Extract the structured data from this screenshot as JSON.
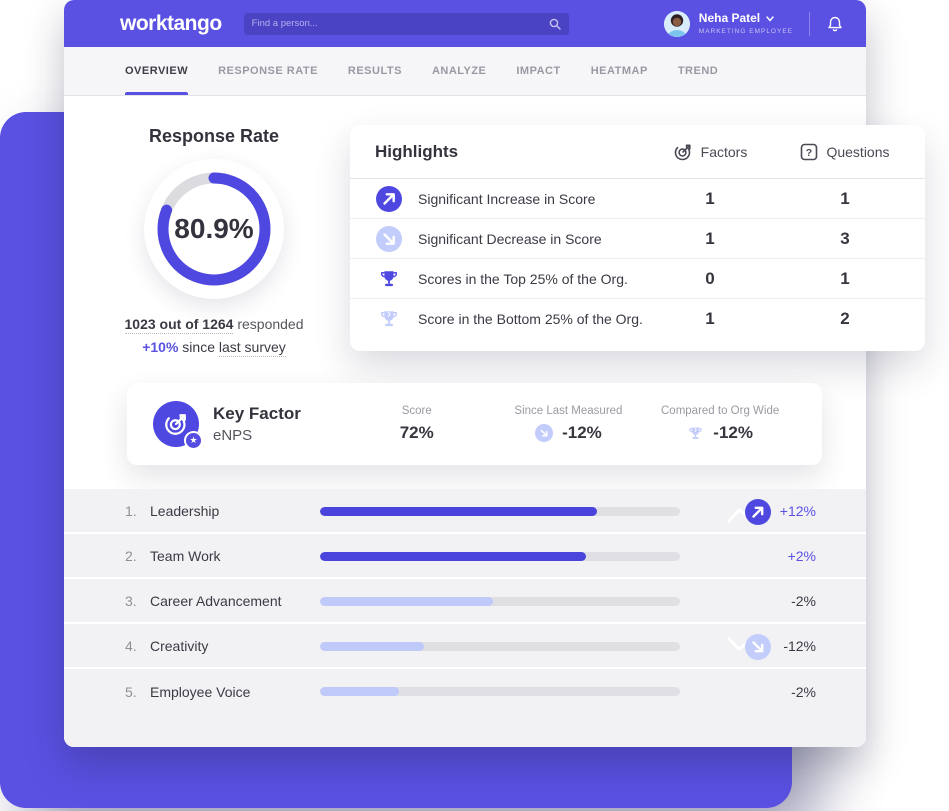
{
  "colors": {
    "accent": "#5A51E3",
    "icon_solid": "#4F48E0",
    "icon_light": "#C3CDFB",
    "bar_light": "#BFCAFA"
  },
  "header": {
    "logo": "worktango",
    "search_placeholder": "Find a person...",
    "user_name": "Neha Patel",
    "user_role": "MARKETING EMPLOYEE"
  },
  "tabs": [
    {
      "label": "OVERVIEW"
    },
    {
      "label": "RESPONSE RATE"
    },
    {
      "label": "RESULTS"
    },
    {
      "label": "ANALYZE"
    },
    {
      "label": "IMPACT"
    },
    {
      "label": "HEATMAP"
    },
    {
      "label": "TREND"
    }
  ],
  "response_rate": {
    "title": "Response Rate",
    "percent_label": "80.9%",
    "percent_value": 80.9,
    "responded_strong": "1023 out of 1264",
    "responded_text": "responded",
    "delta": "+10%",
    "delta_mid": "since",
    "delta_underlined": "last survey"
  },
  "highlights": {
    "title": "Highlights",
    "columns": {
      "factors": "Factors",
      "questions": "Questions"
    },
    "rows": [
      {
        "label": "Significant Increase in Score",
        "factors": "1",
        "questions": "1"
      },
      {
        "label": "Significant Decrease in Score",
        "factors": "1",
        "questions": "3"
      },
      {
        "label": "Scores in the Top 25% of the Org.",
        "factors": "0",
        "questions": "1"
      },
      {
        "label": "Score in the Bottom 25% of the Org.",
        "factors": "1",
        "questions": "2"
      }
    ]
  },
  "key_factor": {
    "title": "Key Factor",
    "subtitle": "eNPS",
    "score_label": "Score",
    "score_value": "72%",
    "since_label": "Since Last Measured",
    "since_value": "-12%",
    "compared_label": "Compared to Org Wide",
    "compared_value": "-12%"
  },
  "factors_list": {
    "rows": [
      {
        "rank": "1.",
        "label": "Leadership",
        "percent": 77,
        "change": "+12%"
      },
      {
        "rank": "2.",
        "label": "Team Work",
        "percent": 74,
        "change": "+2%"
      },
      {
        "rank": "3.",
        "label": "Career Advancement",
        "percent": 48,
        "change": "-2%"
      },
      {
        "rank": "4.",
        "label": "Creativity",
        "percent": 29,
        "change": "-12%"
      },
      {
        "rank": "5.",
        "label": "Employee Voice",
        "percent": 22,
        "change": "-2%"
      }
    ]
  }
}
